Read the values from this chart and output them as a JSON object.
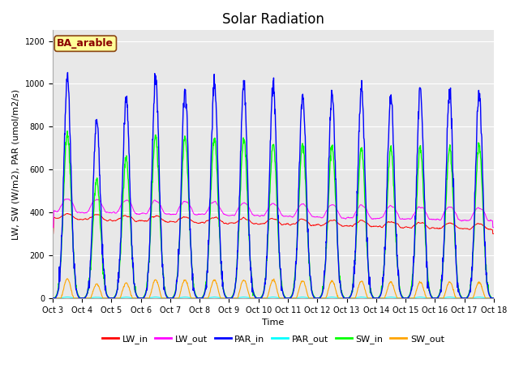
{
  "title": "Solar Radiation",
  "xlabel": "Time",
  "ylabel": "LW, SW (W/m2), PAR (umol/m2/s)",
  "annotation": "BA_arable",
  "annotation_color": "#8B0000",
  "annotation_bg": "#FFFF99",
  "annotation_border": "#8B4513",
  "ylim": [
    0,
    1250
  ],
  "yticks": [
    0,
    200,
    400,
    600,
    800,
    1000,
    1200
  ],
  "xtick_labels": [
    "Oct 3",
    "Oct 4",
    "Oct 5",
    "Oct 6",
    "Oct 7",
    "Oct 8",
    "Oct 9",
    "Oct 10",
    "Oct 11",
    "Oct 12",
    "Oct 13",
    "Oct 14",
    "Oct 15",
    "Oct 16",
    "Oct 17",
    "Oct 18"
  ],
  "num_days": 15,
  "series_colors": {
    "LW_in": "#FF0000",
    "LW_out": "#FF00FF",
    "PAR_in": "#0000FF",
    "PAR_out": "#00FFFF",
    "SW_in": "#00FF00",
    "SW_out": "#FFA500"
  },
  "plot_bg_color": "#e8e8e8",
  "grid_color": "white",
  "title_fontsize": 12,
  "label_fontsize": 8,
  "tick_fontsize": 7,
  "legend_fontsize": 8
}
